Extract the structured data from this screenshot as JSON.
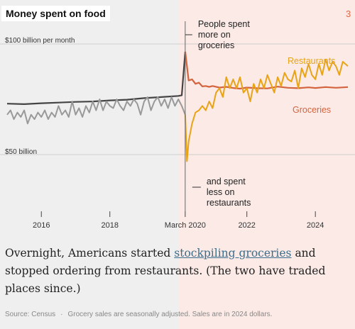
{
  "title": "Money spent on food",
  "slide_number": "3",
  "caption": {
    "before": "Overnight, Americans started ",
    "link": "stockpiling groceries",
    "after": " and stopped ordering from restaurants. (The two have traded places since.)"
  },
  "footer": {
    "source": "Source: Census",
    "note": "Grocery sales are seasonally adjusted. Sales are in 2024 dollars."
  },
  "colors": {
    "groceries_before": "#444444",
    "groceries_after": "#d4643e",
    "restaurants_before": "#999999",
    "restaurants_after": "#e8a317",
    "background_before": "#efefef",
    "background_after": "#fbeae5"
  },
  "chart_data": {
    "type": "line",
    "ylim": [
      46,
      105
    ],
    "x_range": [
      2015.0,
      2024.95
    ],
    "divider_x": 2020.2,
    "y_ticks": [
      {
        "value": 100,
        "label": "$100 billion per month"
      },
      {
        "value": 50,
        "label": "$50 billion"
      }
    ],
    "x_ticks": [
      {
        "value": 2016,
        "label": "2016"
      },
      {
        "value": 2018,
        "label": "2018"
      },
      {
        "value": 2020.2,
        "label": "March 2020"
      },
      {
        "value": 2022,
        "label": "2022"
      },
      {
        "value": 2024,
        "label": "2024"
      }
    ],
    "annotations": [
      {
        "text": [
          "People spent",
          "more on",
          "groceries"
        ],
        "x": 2020.2,
        "y": 91
      },
      {
        "text": [
          "and spent",
          "less on",
          "restaurants"
        ],
        "x": 2020.2,
        "y": 47
      }
    ],
    "series": [
      {
        "name": "Groceries",
        "x": [
          2015.0,
          2015.5,
          2016.0,
          2016.5,
          2017.0,
          2017.5,
          2018.0,
          2018.5,
          2019.0,
          2019.5,
          2020.0,
          2020.1,
          2020.2,
          2020.3,
          2020.4,
          2020.5,
          2020.6,
          2020.7,
          2020.8,
          2020.9,
          2021.0,
          2021.2,
          2021.4,
          2021.6,
          2021.8,
          2022.0,
          2022.3,
          2022.6,
          2022.9,
          2023.2,
          2023.5,
          2023.8,
          2024.0,
          2024.3,
          2024.6,
          2024.95
        ],
        "y": [
          73,
          72.8,
          73.2,
          73.5,
          73.8,
          74,
          74.5,
          74.8,
          75.5,
          76,
          76.5,
          76.8,
          96.5,
          83.5,
          84,
          82,
          82.5,
          80.8,
          81,
          80.6,
          81,
          80.3,
          80.6,
          80.1,
          79.8,
          80.3,
          80,
          79.9,
          80.7,
          80.2,
          80,
          80.4,
          80.1,
          80.5,
          80.2,
          80.5
        ]
      },
      {
        "name": "Restaurants",
        "x": [
          2015.0,
          2015.1,
          2015.2,
          2015.3,
          2015.4,
          2015.5,
          2015.6,
          2015.7,
          2015.8,
          2015.9,
          2016.0,
          2016.1,
          2016.2,
          2016.3,
          2016.4,
          2016.5,
          2016.6,
          2016.7,
          2016.8,
          2016.9,
          2017.0,
          2017.1,
          2017.2,
          2017.3,
          2017.4,
          2017.5,
          2017.6,
          2017.7,
          2017.8,
          2017.9,
          2018.0,
          2018.1,
          2018.2,
          2018.3,
          2018.4,
          2018.5,
          2018.6,
          2018.7,
          2018.8,
          2018.9,
          2019.0,
          2019.1,
          2019.2,
          2019.3,
          2019.4,
          2019.5,
          2019.6,
          2019.7,
          2019.8,
          2019.9,
          2020.0,
          2020.1,
          2020.2,
          2020.25,
          2020.3,
          2020.4,
          2020.5,
          2020.6,
          2020.7,
          2020.8,
          2020.9,
          2021.0,
          2021.1,
          2021.2,
          2021.3,
          2021.4,
          2021.5,
          2021.6,
          2021.7,
          2021.8,
          2021.9,
          2022.0,
          2022.1,
          2022.2,
          2022.3,
          2022.4,
          2022.5,
          2022.6,
          2022.7,
          2022.8,
          2022.9,
          2023.0,
          2023.1,
          2023.2,
          2023.3,
          2023.4,
          2023.5,
          2023.6,
          2023.7,
          2023.8,
          2023.9,
          2024.0,
          2024.1,
          2024.2,
          2024.3,
          2024.4,
          2024.5,
          2024.6,
          2024.7,
          2024.8,
          2024.95
        ],
        "y": [
          68,
          70,
          66,
          69,
          67,
          70,
          64,
          68,
          66,
          69,
          67,
          70,
          66,
          69,
          67,
          72,
          68,
          70,
          67,
          74,
          68,
          71,
          67,
          72,
          69,
          74,
          70,
          75,
          70,
          74,
          72,
          71,
          75,
          72,
          70,
          74,
          72,
          75,
          73,
          68,
          74,
          76,
          70,
          74,
          76,
          72,
          75,
          71,
          76,
          72,
          75,
          72,
          68,
          47,
          56,
          64,
          69,
          70,
          72,
          70,
          74,
          71,
          78,
          80,
          76,
          85,
          80,
          84,
          80,
          85,
          78,
          80,
          74,
          82,
          78,
          84,
          80,
          86,
          82,
          78,
          85,
          81,
          87,
          84,
          83,
          88,
          80,
          89,
          85,
          91,
          86,
          84,
          91,
          86,
          93,
          88,
          92,
          90,
          86,
          92,
          90
        ]
      }
    ],
    "legend": [
      {
        "text": "Restaurants",
        "series": "Restaurants",
        "x": 2023.2,
        "y": 93
      },
      {
        "text": "Groceries",
        "series": "Groceries",
        "x": 2023.2,
        "y": 77
      }
    ]
  }
}
